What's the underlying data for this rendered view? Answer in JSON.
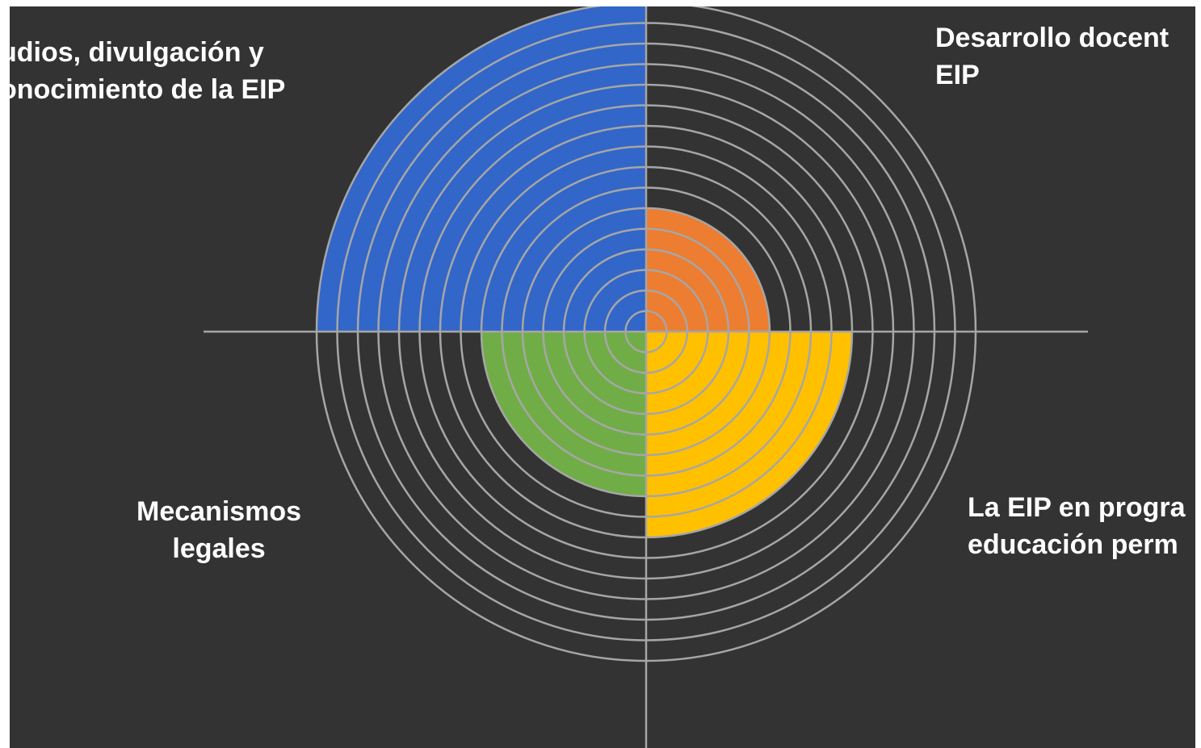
{
  "chart_data": {
    "type": "polar-area",
    "rings_total": 16,
    "sectors": [
      {
        "quadrant": "top-left",
        "label_lines": [
          "udios, divulgación y",
          "onocimiento de la EIP"
        ],
        "value": 16,
        "color": "#3266c8"
      },
      {
        "quadrant": "top-right",
        "label_lines": [
          "Desarrollo docent",
          "EIP"
        ],
        "value": 6,
        "color": "#ed7d31"
      },
      {
        "quadrant": "bottom-right",
        "label_lines": [
          "La EIP en progra",
          "educación perm"
        ],
        "value": 10,
        "color": "#ffc000"
      },
      {
        "quadrant": "bottom-left",
        "label_lines": [
          "Mecanismos",
          "legales"
        ],
        "value": 8,
        "color": "#70ad47"
      }
    ],
    "grid": true,
    "grid_color": "#a6a6a6",
    "background": "#333333",
    "label_color": "#ffffff"
  }
}
